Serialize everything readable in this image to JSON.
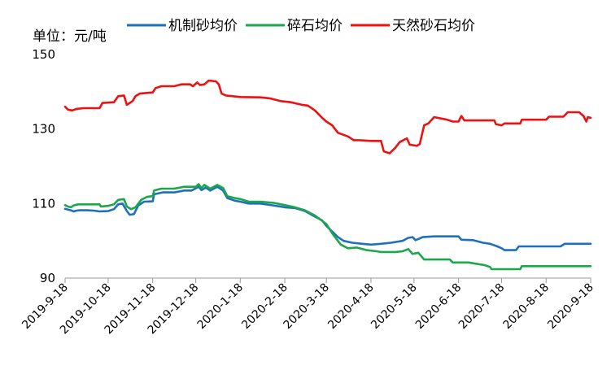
{
  "chart_data": {
    "type": "line",
    "unit_label": "单位：元/吨",
    "title": "",
    "xlabel": "",
    "ylabel": "",
    "ylim": [
      90,
      150
    ],
    "yticks": [
      90,
      110,
      130,
      150
    ],
    "x_range": [
      "2019-9-18",
      "2020-9-18"
    ],
    "xticks": [
      "2019-9-18",
      "2019-10-18",
      "2019-11-18",
      "2019-12-18",
      "2020-1-18",
      "2020-2-18",
      "2020-3-18",
      "2020-4-18",
      "2020-5-18",
      "2020-6-18",
      "2020-7-18",
      "2020-8-18",
      "2020-9-18"
    ],
    "grid": false,
    "legend_position": "top",
    "series": [
      {
        "name": "机制砂均价",
        "color": "#1f6fbf",
        "points": [
          [
            "2019-9-18",
            108.6
          ],
          [
            "2019-9-20",
            108.4
          ],
          [
            "2019-9-22",
            108.2
          ],
          [
            "2019-9-24",
            107.9
          ],
          [
            "2019-9-26",
            108.1
          ],
          [
            "2019-9-28",
            108.2
          ],
          [
            "2019-10-3",
            108.2
          ],
          [
            "2019-10-8",
            108.1
          ],
          [
            "2019-10-12",
            107.9
          ],
          [
            "2019-10-18",
            108.0
          ],
          [
            "2019-10-22",
            108.5
          ],
          [
            "2019-10-25",
            109.8
          ],
          [
            "2019-10-28",
            110.0
          ],
          [
            "2019-10-31",
            108.0
          ],
          [
            "2019-11-2",
            107.0
          ],
          [
            "2019-11-5",
            107.2
          ],
          [
            "2019-11-8",
            109.5
          ],
          [
            "2019-11-12",
            110.5
          ],
          [
            "2019-11-18",
            110.6
          ],
          [
            "2019-11-19",
            112.5
          ],
          [
            "2019-11-25",
            113.0
          ],
          [
            "2019-12-3",
            113.0
          ],
          [
            "2019-12-10",
            113.5
          ],
          [
            "2019-12-15",
            113.5
          ],
          [
            "2019-12-20",
            114.5
          ],
          [
            "2019-12-22",
            113.6
          ],
          [
            "2019-12-25",
            114.3
          ],
          [
            "2019-12-28",
            113.5
          ],
          [
            "2020-1-2",
            114.5
          ],
          [
            "2020-1-6",
            113.5
          ],
          [
            "2020-1-9",
            111.5
          ],
          [
            "2020-1-14",
            110.8
          ],
          [
            "2020-1-18",
            110.5
          ],
          [
            "2020-1-24",
            110.0
          ],
          [
            "2020-2-1",
            110.0
          ],
          [
            "2020-2-10",
            109.5
          ],
          [
            "2020-2-18",
            109.0
          ],
          [
            "2020-2-25",
            108.8
          ],
          [
            "2020-3-3",
            108.0
          ],
          [
            "2020-3-10",
            106.5
          ],
          [
            "2020-3-15",
            105.5
          ],
          [
            "2020-3-18",
            104.0
          ],
          [
            "2020-3-22",
            102.5
          ],
          [
            "2020-3-26",
            101.0
          ],
          [
            "2020-3-30",
            100.0
          ],
          [
            "2020-4-5",
            99.5
          ],
          [
            "2020-4-12",
            99.2
          ],
          [
            "2020-4-18",
            99.0
          ],
          [
            "2020-4-25",
            99.2
          ],
          [
            "2020-5-2",
            99.5
          ],
          [
            "2020-5-10",
            100.0
          ],
          [
            "2020-5-14",
            100.8
          ],
          [
            "2020-5-17",
            101.0
          ],
          [
            "2020-5-19",
            100.2
          ],
          [
            "2020-5-21",
            100.5
          ],
          [
            "2020-5-24",
            101.0
          ],
          [
            "2020-6-1",
            101.2
          ],
          [
            "2020-6-10",
            101.2
          ],
          [
            "2020-6-18",
            101.2
          ],
          [
            "2020-6-20",
            100.3
          ],
          [
            "2020-6-28",
            100.2
          ],
          [
            "2020-7-5",
            99.5
          ],
          [
            "2020-7-10",
            99.2
          ],
          [
            "2020-7-15",
            98.5
          ],
          [
            "2020-7-18",
            98.0
          ],
          [
            "2020-7-20",
            97.5
          ],
          [
            "2020-7-28",
            97.5
          ],
          [
            "2020-7-30",
            98.5
          ],
          [
            "2020-8-10",
            98.5
          ],
          [
            "2020-8-18",
            98.5
          ],
          [
            "2020-8-28",
            98.5
          ],
          [
            "2020-8-31",
            99.2
          ],
          [
            "2020-9-10",
            99.2
          ],
          [
            "2020-9-18",
            99.2
          ]
        ]
      },
      {
        "name": "碎石均价",
        "color": "#1aa84a",
        "points": [
          [
            "2019-9-18",
            109.6
          ],
          [
            "2019-9-20",
            109.2
          ],
          [
            "2019-9-22",
            109.0
          ],
          [
            "2019-9-24",
            109.5
          ],
          [
            "2019-9-27",
            109.8
          ],
          [
            "2019-10-5",
            109.8
          ],
          [
            "2019-10-12",
            109.8
          ],
          [
            "2019-10-13",
            109.2
          ],
          [
            "2019-10-18",
            109.4
          ],
          [
            "2019-10-22",
            109.8
          ],
          [
            "2019-10-25",
            111.0
          ],
          [
            "2019-10-29",
            111.2
          ],
          [
            "2019-10-31",
            109.2
          ],
          [
            "2019-11-3",
            108.5
          ],
          [
            "2019-11-6",
            109.0
          ],
          [
            "2019-11-10",
            111.0
          ],
          [
            "2019-11-14",
            111.8
          ],
          [
            "2019-11-18",
            112.0
          ],
          [
            "2019-11-19",
            113.5
          ],
          [
            "2019-11-24",
            114.0
          ],
          [
            "2019-12-3",
            114.0
          ],
          [
            "2019-12-10",
            114.5
          ],
          [
            "2019-12-18",
            114.5
          ],
          [
            "2019-12-20",
            115.2
          ],
          [
            "2019-12-22",
            114.2
          ],
          [
            "2019-12-24",
            115.0
          ],
          [
            "2019-12-28",
            114.0
          ],
          [
            "2020-1-2",
            115.0
          ],
          [
            "2020-1-6",
            114.2
          ],
          [
            "2020-1-9",
            112.0
          ],
          [
            "2020-1-14",
            111.5
          ],
          [
            "2020-1-18",
            111.2
          ],
          [
            "2020-1-24",
            110.5
          ],
          [
            "2020-2-1",
            110.5
          ],
          [
            "2020-2-10",
            110.2
          ],
          [
            "2020-2-18",
            109.6
          ],
          [
            "2020-2-25",
            109.0
          ],
          [
            "2020-3-3",
            108.2
          ],
          [
            "2020-3-10",
            106.8
          ],
          [
            "2020-3-18",
            104.5
          ],
          [
            "2020-3-22",
            102.0
          ],
          [
            "2020-3-25",
            100.5
          ],
          [
            "2020-3-28",
            99.0
          ],
          [
            "2020-4-2",
            98.0
          ],
          [
            "2020-4-8",
            98.2
          ],
          [
            "2020-4-15",
            97.5
          ],
          [
            "2020-4-22",
            97.2
          ],
          [
            "2020-4-25",
            97.0
          ],
          [
            "2020-5-5",
            97.0
          ],
          [
            "2020-5-10",
            97.2
          ],
          [
            "2020-5-14",
            97.8
          ],
          [
            "2020-5-17",
            96.5
          ],
          [
            "2020-5-21",
            96.8
          ],
          [
            "2020-5-25",
            95.0
          ],
          [
            "2020-6-5",
            95.0
          ],
          [
            "2020-6-12",
            95.0
          ],
          [
            "2020-6-14",
            94.2
          ],
          [
            "2020-6-25",
            94.2
          ],
          [
            "2020-6-28",
            94.0
          ],
          [
            "2020-7-6",
            93.5
          ],
          [
            "2020-7-10",
            93.0
          ],
          [
            "2020-7-11",
            92.4
          ],
          [
            "2020-7-20",
            92.4
          ],
          [
            "2020-7-31",
            92.4
          ],
          [
            "2020-8-1",
            93.2
          ],
          [
            "2020-8-18",
            93.2
          ],
          [
            "2020-9-1",
            93.2
          ],
          [
            "2020-9-18",
            93.2
          ]
        ]
      },
      {
        "name": "天然砂石均价",
        "color": "#ee1111",
        "points": [
          [
            "2019-9-18",
            136.0
          ],
          [
            "2019-9-20",
            135.2
          ],
          [
            "2019-9-23",
            135.0
          ],
          [
            "2019-9-26",
            135.4
          ],
          [
            "2019-10-1",
            135.6
          ],
          [
            "2019-10-12",
            135.6
          ],
          [
            "2019-10-14",
            137.0
          ],
          [
            "2019-10-22",
            137.2
          ],
          [
            "2019-10-25",
            138.8
          ],
          [
            "2019-10-29",
            139.0
          ],
          [
            "2019-10-31",
            136.5
          ],
          [
            "2019-11-4",
            137.5
          ],
          [
            "2019-11-6",
            138.8
          ],
          [
            "2019-11-9",
            139.5
          ],
          [
            "2019-11-18",
            139.8
          ],
          [
            "2019-11-20",
            141.0
          ],
          [
            "2019-11-24",
            141.5
          ],
          [
            "2019-12-3",
            141.5
          ],
          [
            "2019-12-8",
            142.0
          ],
          [
            "2019-12-14",
            142.0
          ],
          [
            "2019-12-16",
            141.5
          ],
          [
            "2019-12-19",
            142.5
          ],
          [
            "2019-12-21",
            141.8
          ],
          [
            "2019-12-24",
            142.0
          ],
          [
            "2019-12-27",
            143.0
          ],
          [
            "2020-1-1",
            142.8
          ],
          [
            "2020-1-3",
            142.0
          ],
          [
            "2020-1-5",
            139.5
          ],
          [
            "2020-1-8",
            139.0
          ],
          [
            "2020-1-18",
            138.6
          ],
          [
            "2020-2-1",
            138.5
          ],
          [
            "2020-2-8",
            138.2
          ],
          [
            "2020-2-15",
            137.5
          ],
          [
            "2020-2-22",
            137.2
          ],
          [
            "2020-3-1",
            136.5
          ],
          [
            "2020-3-5",
            136.3
          ],
          [
            "2020-3-10",
            135.0
          ],
          [
            "2020-3-15",
            133.0
          ],
          [
            "2020-3-18",
            132.0
          ],
          [
            "2020-3-22",
            131.0
          ],
          [
            "2020-3-26",
            129.0
          ],
          [
            "2020-4-2",
            128.0
          ],
          [
            "2020-4-6",
            127.0
          ],
          [
            "2020-4-10",
            127.0
          ],
          [
            "2020-4-18",
            126.8
          ],
          [
            "2020-4-25",
            126.8
          ],
          [
            "2020-4-27",
            124.0
          ],
          [
            "2020-5-1",
            123.5
          ],
          [
            "2020-5-5",
            125.0
          ],
          [
            "2020-5-8",
            126.5
          ],
          [
            "2020-5-13",
            127.5
          ],
          [
            "2020-5-15",
            125.8
          ],
          [
            "2020-5-20",
            125.5
          ],
          [
            "2020-5-22",
            126.0
          ],
          [
            "2020-5-25",
            131.0
          ],
          [
            "2020-5-28",
            131.5
          ],
          [
            "2020-6-1",
            133.2
          ],
          [
            "2020-6-10",
            132.5
          ],
          [
            "2020-6-14",
            132.0
          ],
          [
            "2020-6-18",
            132.0
          ],
          [
            "2020-6-20",
            133.5
          ],
          [
            "2020-6-22",
            132.3
          ],
          [
            "2020-7-5",
            132.3
          ],
          [
            "2020-7-13",
            132.3
          ],
          [
            "2020-7-14",
            131.3
          ],
          [
            "2020-7-18",
            131.0
          ],
          [
            "2020-7-20",
            131.5
          ],
          [
            "2020-7-31",
            131.5
          ],
          [
            "2020-8-1",
            132.5
          ],
          [
            "2020-8-10",
            132.5
          ],
          [
            "2020-8-18",
            132.5
          ],
          [
            "2020-8-20",
            133.3
          ],
          [
            "2020-8-30",
            133.3
          ],
          [
            "2020-9-2",
            134.5
          ],
          [
            "2020-9-10",
            134.5
          ],
          [
            "2020-9-13",
            133.5
          ],
          [
            "2020-9-15",
            132.0
          ],
          [
            "2020-9-16",
            133.2
          ],
          [
            "2020-9-18",
            133.0
          ]
        ]
      }
    ]
  }
}
